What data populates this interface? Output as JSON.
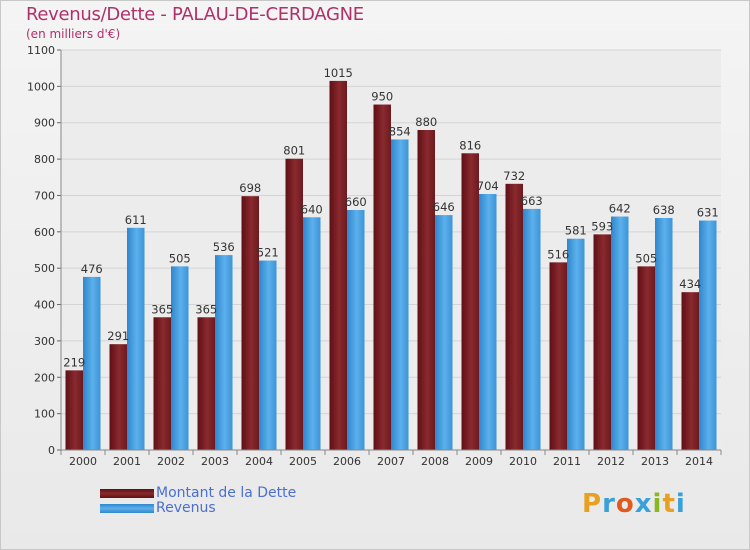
{
  "header": {
    "title": "Revenus/Dette - PALAU-DE-CERDAGNE",
    "subtitle": "(en milliers d'€)"
  },
  "legend": {
    "items": [
      {
        "label": "Montant de la Dette",
        "color": "#7a1e24"
      },
      {
        "label": "Revenus",
        "color": "#4aa0e0"
      }
    ]
  },
  "logo": {
    "letters": [
      "P",
      "r",
      "o",
      "x",
      "i",
      "t",
      "i"
    ],
    "colors": [
      "#e8a020",
      "#3aa0d8",
      "#e05a20",
      "#3aa0d8",
      "#8ab820",
      "#e8a020",
      "#3aa0d8"
    ]
  },
  "chart_data": {
    "type": "bar",
    "title": "Revenus/Dette - PALAU-DE-CERDAGNE",
    "ylabel": "(en milliers d'€)",
    "xlabel": "",
    "ylim": [
      0,
      1100
    ],
    "yticks": [
      0,
      100,
      200,
      300,
      400,
      500,
      600,
      700,
      800,
      900,
      1000,
      1100
    ],
    "grid": true,
    "categories": [
      "2000",
      "2001",
      "2002",
      "2003",
      "2004",
      "2005",
      "2006",
      "2007",
      "2008",
      "2009",
      "2010",
      "2011",
      "2012",
      "2013",
      "2014"
    ],
    "series": [
      {
        "name": "Montant de la Dette",
        "color": "#7a1e24",
        "values": [
          219,
          291,
          365,
          365,
          698,
          801,
          1015,
          950,
          880,
          816,
          732,
          516,
          593,
          505,
          434
        ]
      },
      {
        "name": "Revenus",
        "color": "#4aa0e0",
        "values": [
          476,
          611,
          505,
          536,
          521,
          640,
          660,
          854,
          646,
          704,
          663,
          581,
          642,
          638,
          631
        ]
      }
    ]
  }
}
